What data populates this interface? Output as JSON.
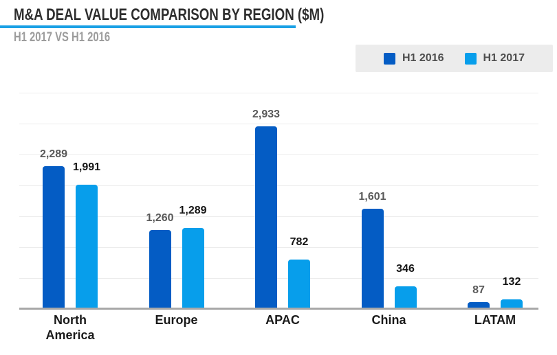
{
  "header": {
    "title": "M&A DEAL VALUE COMPARISON BY REGION ($M)",
    "subtitle": "H1 2017 VS H1 2016",
    "underline_color": "#1aa0e5"
  },
  "legend": {
    "position": "top-right",
    "items": [
      {
        "label": "H1 2016",
        "color": "#045cc4"
      },
      {
        "label": "H1 2017",
        "color": "#079eeb"
      }
    ]
  },
  "chart_data": {
    "type": "bar",
    "title": "M&A Deal Value Comparison by Region ($M)",
    "subtitle": "H1 2017 vs H1 2016",
    "categories": [
      "North America",
      "Europe",
      "APAC",
      "China",
      "LATAM"
    ],
    "series": [
      {
        "name": "H1 2016",
        "color": "#045cc4",
        "values": [
          2289,
          1260,
          2933,
          1601,
          87
        ],
        "data_labels": [
          "2,289",
          "1,260",
          "2,933",
          "1,601",
          "87"
        ],
        "data_label_color": "#595959"
      },
      {
        "name": "H1 2017",
        "color": "#079eeb",
        "values": [
          1991,
          1289,
          782,
          346,
          132
        ],
        "data_labels": [
          "1,991",
          "1,289",
          "782",
          "346",
          "132"
        ],
        "data_label_color": "#141414"
      }
    ],
    "xlabel": "",
    "ylabel": "",
    "ylim": [
      0,
      3500
    ],
    "gridline_step": 500,
    "grid": "horizontal",
    "y_axis_ticks_visible": false,
    "legend_position": "top-right",
    "colors": {
      "gridline": "#ececec",
      "axis_line": "#a8a8a8"
    }
  }
}
